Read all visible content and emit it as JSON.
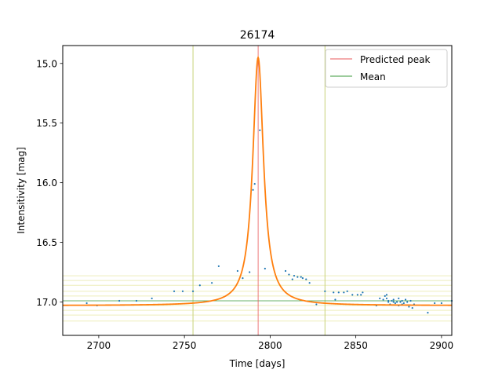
{
  "chart_data": {
    "type": "scatter",
    "title": "26174",
    "xlabel": "Time [days]",
    "ylabel": "Intensitivity [mag]",
    "xlim": [
      2679,
      2906
    ],
    "ylim": [
      17.28,
      14.85
    ],
    "y_inverted": true,
    "xticks": [
      2700,
      2750,
      2800,
      2850,
      2900
    ],
    "yticks": [
      15.0,
      15.5,
      16.0,
      16.5,
      17.0
    ],
    "grid": false,
    "legend": {
      "placement": "top-right",
      "entries": [
        {
          "label": "Predicted peak",
          "color": "#e8595b"
        },
        {
          "label": "Mean",
          "color": "#3a9a3a"
        }
      ]
    },
    "predicted_peak_x": 2793,
    "mean_y": 16.99,
    "bounds_x": [
      2755,
      2832
    ],
    "band_levels": [
      16.78,
      16.82,
      16.86,
      16.91,
      16.95,
      17.03,
      17.07,
      17.11,
      17.16
    ],
    "fit_curve": {
      "color": "#ff7f0e",
      "peak_x": 2793,
      "peak_y": 14.95,
      "baseline": 17.03,
      "width": 3.8,
      "shape": "lorentzian"
    },
    "observations": {
      "color": "#1f77b4",
      "points": [
        [
          2693,
          17.01
        ],
        [
          2699,
          17.03
        ],
        [
          2712,
          16.99
        ],
        [
          2722,
          16.99
        ],
        [
          2731,
          16.97
        ],
        [
          2744,
          16.91
        ],
        [
          2749,
          16.91
        ],
        [
          2755,
          16.91
        ],
        [
          2759,
          16.86
        ],
        [
          2766,
          16.84
        ],
        [
          2770,
          16.7
        ],
        [
          2781,
          16.74
        ],
        [
          2784,
          16.8
        ],
        [
          2788,
          16.75
        ],
        [
          2790,
          16.06
        ],
        [
          2791,
          16.01
        ],
        [
          2794,
          15.56
        ],
        [
          2797,
          16.72
        ],
        [
          2809,
          16.74
        ],
        [
          2811,
          16.77
        ],
        [
          2813,
          16.81
        ],
        [
          2814,
          16.78
        ],
        [
          2816,
          16.79
        ],
        [
          2818,
          16.79
        ],
        [
          2819,
          16.8
        ],
        [
          2821,
          16.81
        ],
        [
          2823,
          16.84
        ],
        [
          2827,
          17.02
        ],
        [
          2832,
          16.91
        ],
        [
          2837,
          16.92
        ],
        [
          2838,
          16.98
        ],
        [
          2840,
          16.92
        ],
        [
          2843,
          16.92
        ],
        [
          2845,
          16.91
        ],
        [
          2848,
          16.94
        ],
        [
          2851,
          16.94
        ],
        [
          2853,
          16.94
        ],
        [
          2854,
          16.92
        ],
        [
          2862,
          17.03
        ],
        [
          2864,
          16.97
        ],
        [
          2866,
          16.98
        ],
        [
          2867,
          16.95
        ],
        [
          2868,
          16.94
        ],
        [
          2868,
          16.97
        ],
        [
          2869,
          17.0
        ],
        [
          2869,
          16.99
        ],
        [
          2870,
          17.02
        ],
        [
          2871,
          16.99
        ],
        [
          2872,
          17.0
        ],
        [
          2872,
          16.98
        ],
        [
          2873,
          17.01
        ],
        [
          2874,
          17.0
        ],
        [
          2875,
          17.03
        ],
        [
          2875,
          16.97
        ],
        [
          2876,
          17.0
        ],
        [
          2877,
          16.99
        ],
        [
          2877,
          17.02
        ],
        [
          2878,
          17.01
        ],
        [
          2879,
          16.98
        ],
        [
          2880,
          17.0
        ],
        [
          2881,
          17.04
        ],
        [
          2882,
          16.99
        ],
        [
          2883,
          17.05
        ],
        [
          2884,
          17.02
        ],
        [
          2892,
          17.09
        ],
        [
          2896,
          17.01
        ],
        [
          2900,
          17.01
        ],
        [
          2906,
          16.99
        ]
      ]
    },
    "colors": {
      "peak_line": "#e8595b",
      "mean_line": "#3a9a3a",
      "bound_line": "#c8d27a",
      "band_line": "#eeeebb"
    }
  }
}
